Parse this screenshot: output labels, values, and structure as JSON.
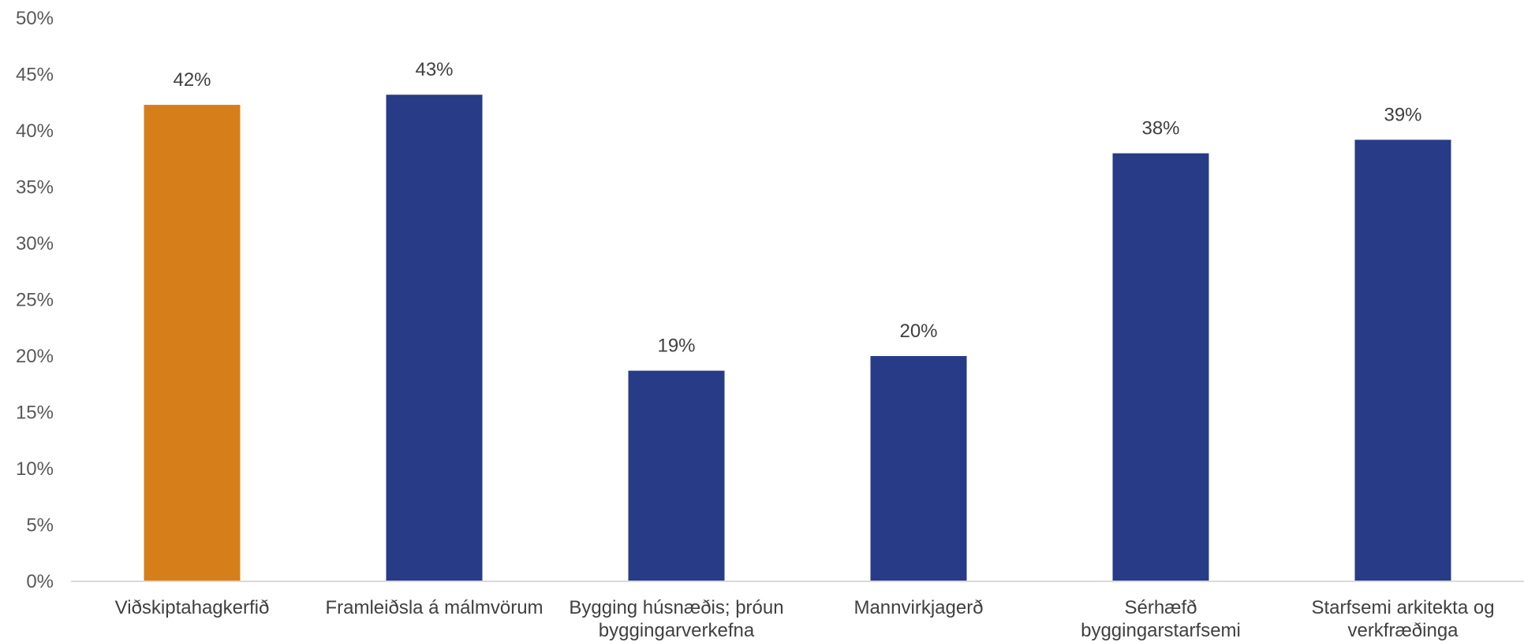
{
  "chart_data": {
    "type": "bar",
    "categories": [
      [
        "Viðskiptahagkerfið"
      ],
      [
        "Framleiðsla á málmvörum"
      ],
      [
        "Bygging húsnæðis; þróun",
        "byggingarverkefna"
      ],
      [
        "Mannvirkjagerð"
      ],
      [
        "Sérhæfð",
        "byggingarstarfsemi"
      ],
      [
        "Starfsemi arkitekta og",
        "verkfræðinga"
      ]
    ],
    "values": [
      42.3,
      43.2,
      18.7,
      20.0,
      38.0,
      39.2
    ],
    "data_labels": [
      "42%",
      "43%",
      "19%",
      "20%",
      "38%",
      "39%"
    ],
    "bar_colors": [
      "#D67F1A",
      "#283B87",
      "#283B87",
      "#283B87",
      "#283B87",
      "#283B87"
    ],
    "ylim": [
      0,
      50
    ],
    "y_ticks": [
      0,
      5,
      10,
      15,
      20,
      25,
      30,
      35,
      40,
      45,
      50
    ],
    "y_tick_labels": [
      "0%",
      "5%",
      "10%",
      "15%",
      "20%",
      "25%",
      "30%",
      "35%",
      "40%",
      "45%",
      "50%"
    ],
    "title": "",
    "xlabel": "",
    "ylabel": "",
    "grid": false,
    "legend": "none"
  }
}
